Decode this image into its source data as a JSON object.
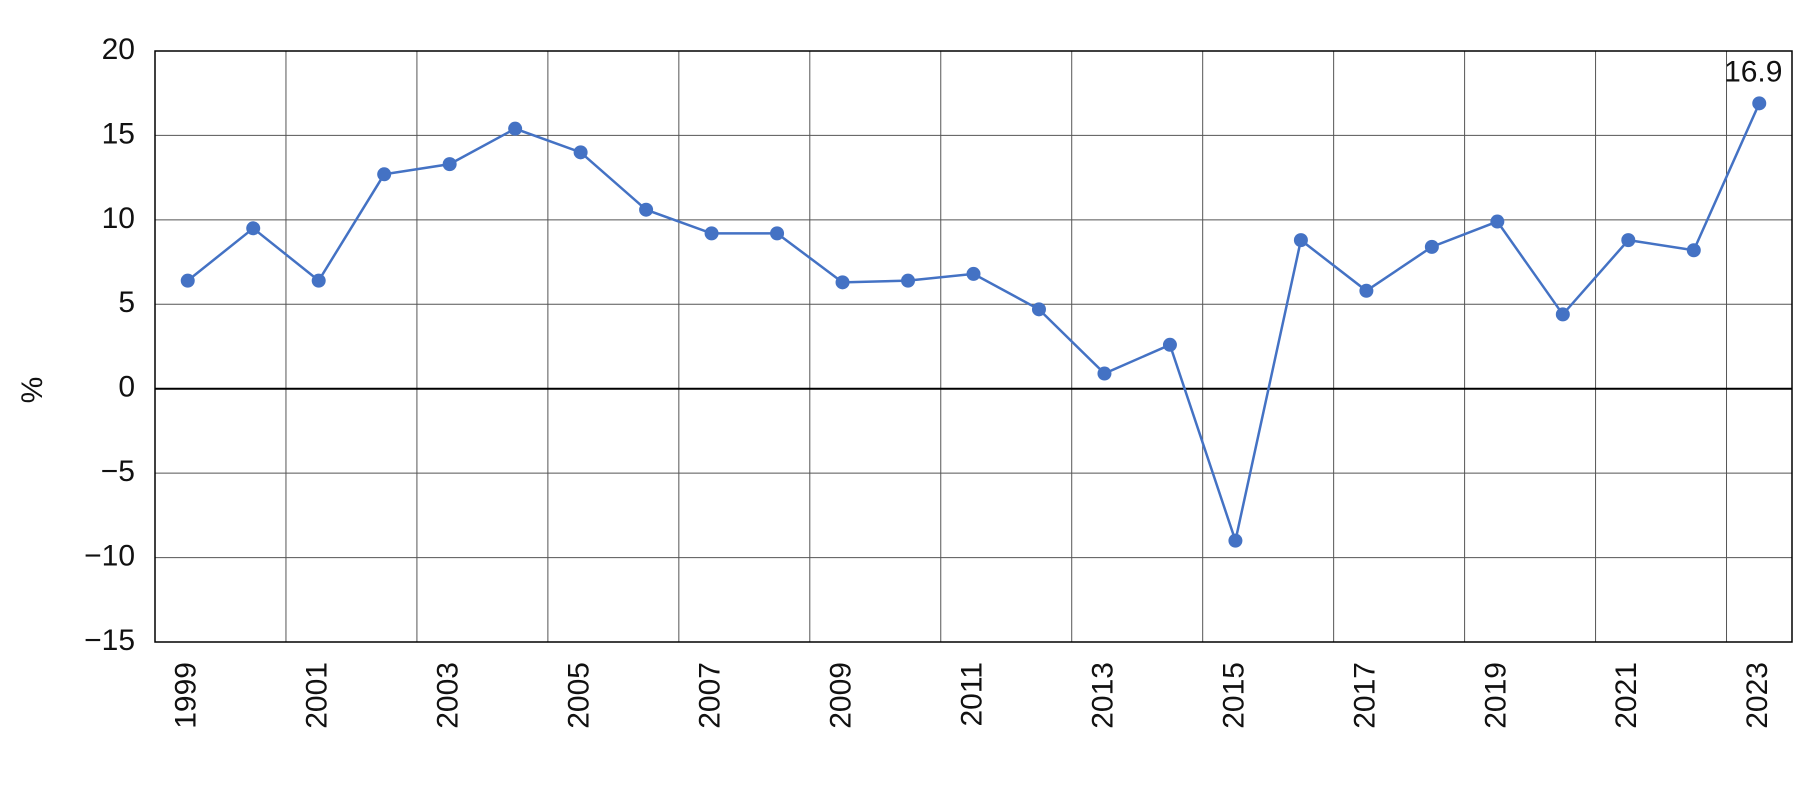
{
  "chart_data": {
    "type": "line",
    "y_label": "%",
    "categories": [
      "1999",
      null,
      "2001",
      null,
      "2003",
      null,
      "2005",
      null,
      "2007",
      null,
      "2009",
      null,
      "2011",
      null,
      "2013",
      null,
      "2015",
      null,
      "2017",
      null,
      "2019",
      null,
      "2021",
      null,
      "2023"
    ],
    "series": [
      {
        "color": "#4472c4",
        "values": [
          6.4,
          9.5,
          6.4,
          12.7,
          13.3,
          15.4,
          14.0,
          10.6,
          9.2,
          9.2,
          6.3,
          6.4,
          6.8,
          4.7,
          0.9,
          2.6,
          -9.0,
          8.8,
          5.8,
          8.4,
          9.9,
          4.4,
          8.8,
          8.2,
          16.9
        ],
        "value_labels": [
          null,
          null,
          null,
          null,
          null,
          null,
          null,
          null,
          null,
          null,
          null,
          null,
          null,
          null,
          null,
          null,
          null,
          null,
          null,
          null,
          null,
          null,
          null,
          null,
          "16.9"
        ]
      }
    ],
    "ylim": [
      -15,
      20
    ],
    "yticks": [
      {
        "value": -15,
        "label": "−15"
      },
      {
        "value": -10,
        "label": "−10"
      },
      {
        "value": -5,
        "label": "−5"
      },
      0,
      5,
      10,
      15,
      20
    ],
    "grid": true
  }
}
